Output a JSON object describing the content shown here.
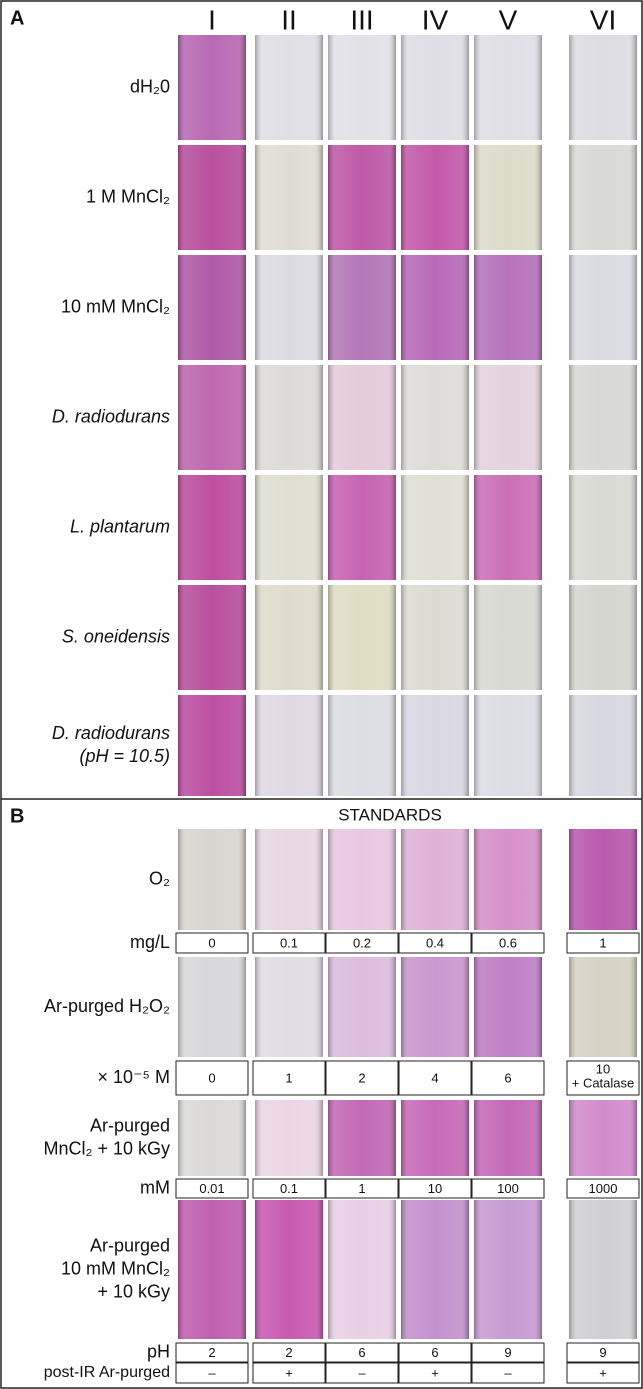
{
  "panel_a": {
    "label": "A",
    "columns": [
      "I",
      "II",
      "III",
      "IV",
      "V",
      "VI"
    ],
    "rows": [
      {
        "label": [
          "dH₂0"
        ],
        "italic": false,
        "colors": [
          "#b86ab4",
          "#e0dfe6",
          "#e2e1e8",
          "#dfdee6",
          "#e0dfe6",
          "#dcdce2"
        ]
      },
      {
        "label": [
          "1 M MnCl₂"
        ],
        "italic": false,
        "colors": [
          "#b8509e",
          "#dfddd3",
          "#bf5aa8",
          "#c45aaa",
          "#dddbc9",
          "#d9d9d5"
        ]
      },
      {
        "label": [
          "10 mM MnCl₂"
        ],
        "italic": false,
        "colors": [
          "#b05aa8",
          "#dcdbe3",
          "#b478b8",
          "#b86ab8",
          "#b673bc",
          "#dadae2"
        ]
      },
      {
        "label": [
          "D. radiodurans"
        ],
        "italic": true,
        "colors": [
          "#bf68b0",
          "#dcdbd8",
          "#e5cbdc",
          "#dddcd8",
          "#e3d3df",
          "#d8d8d4"
        ]
      },
      {
        "label": [
          "L. plantarum"
        ],
        "italic": true,
        "colors": [
          "#be4fa0",
          "#dfded2",
          "#c764b2",
          "#e0dfd5",
          "#cb70b8",
          "#dadad4"
        ]
      },
      {
        "label": [
          "S. oneidensis"
        ],
        "italic": true,
        "colors": [
          "#b8509e",
          "#dfdccd",
          "#e0ddc4",
          "#dcdbd2",
          "#d9d9d3",
          "#d6d6d0"
        ]
      },
      {
        "label": [
          "D. radiodurans",
          "(pH = 10.5)"
        ],
        "italic": true,
        "colors": [
          "#bd4fa2",
          "#e0d8e3",
          "#dcdce4",
          "#d9d8e3",
          "#dcdce5",
          "#d8d8e2"
        ]
      }
    ]
  },
  "panel_b": {
    "label": "B",
    "title": "STANDARDS",
    "rows": [
      {
        "label": [
          "O₂"
        ],
        "colors": [
          "#d9d5cf",
          "#e6d8e4",
          "#e8c8e0",
          "#dfb2d8",
          "#d591c8",
          "#b95aae"
        ],
        "unit": "mg/L",
        "values": [
          0,
          0.1,
          0.2,
          0.4,
          0.6,
          1
        ]
      },
      {
        "label": [
          "Ar-purged H₂O₂"
        ],
        "colors": [
          "#d8d8dc",
          "#dfdce6",
          "#dcbce0",
          "#c998cf",
          "#c07fc6",
          "#d6d3c4"
        ],
        "unit": "× 10⁻⁵ M",
        "values": [
          0,
          1,
          2,
          4,
          6,
          [
            "10",
            "+ Catalase"
          ]
        ]
      },
      {
        "label": [
          "Ar-purged",
          "MnCl₂ + 10 kGy"
        ],
        "colors": [
          "#dcdad8",
          "#ebd6e6",
          "#c26ab5",
          "#c76bb8",
          "#c46ab8",
          "#d18ccb"
        ],
        "unit": "mM",
        "values": [
          0.01,
          0.1,
          1,
          10,
          100,
          1000
        ]
      },
      {
        "label": [
          "Ar-purged",
          "10 mM MnCl₂",
          "+ 10 kGy"
        ],
        "colors": [
          "#c060b0",
          "#c85ab2",
          "#e8d0e5",
          "#c392ce",
          "#c79bd1",
          "#d0d0d4"
        ],
        "unit": "pH",
        "values": [
          2,
          2,
          6,
          6,
          9,
          9
        ]
      }
    ],
    "post_ir": {
      "label": "post-IR Ar-purged",
      "values": [
        "–",
        "+",
        "–",
        "+",
        "–",
        "+"
      ]
    }
  }
}
